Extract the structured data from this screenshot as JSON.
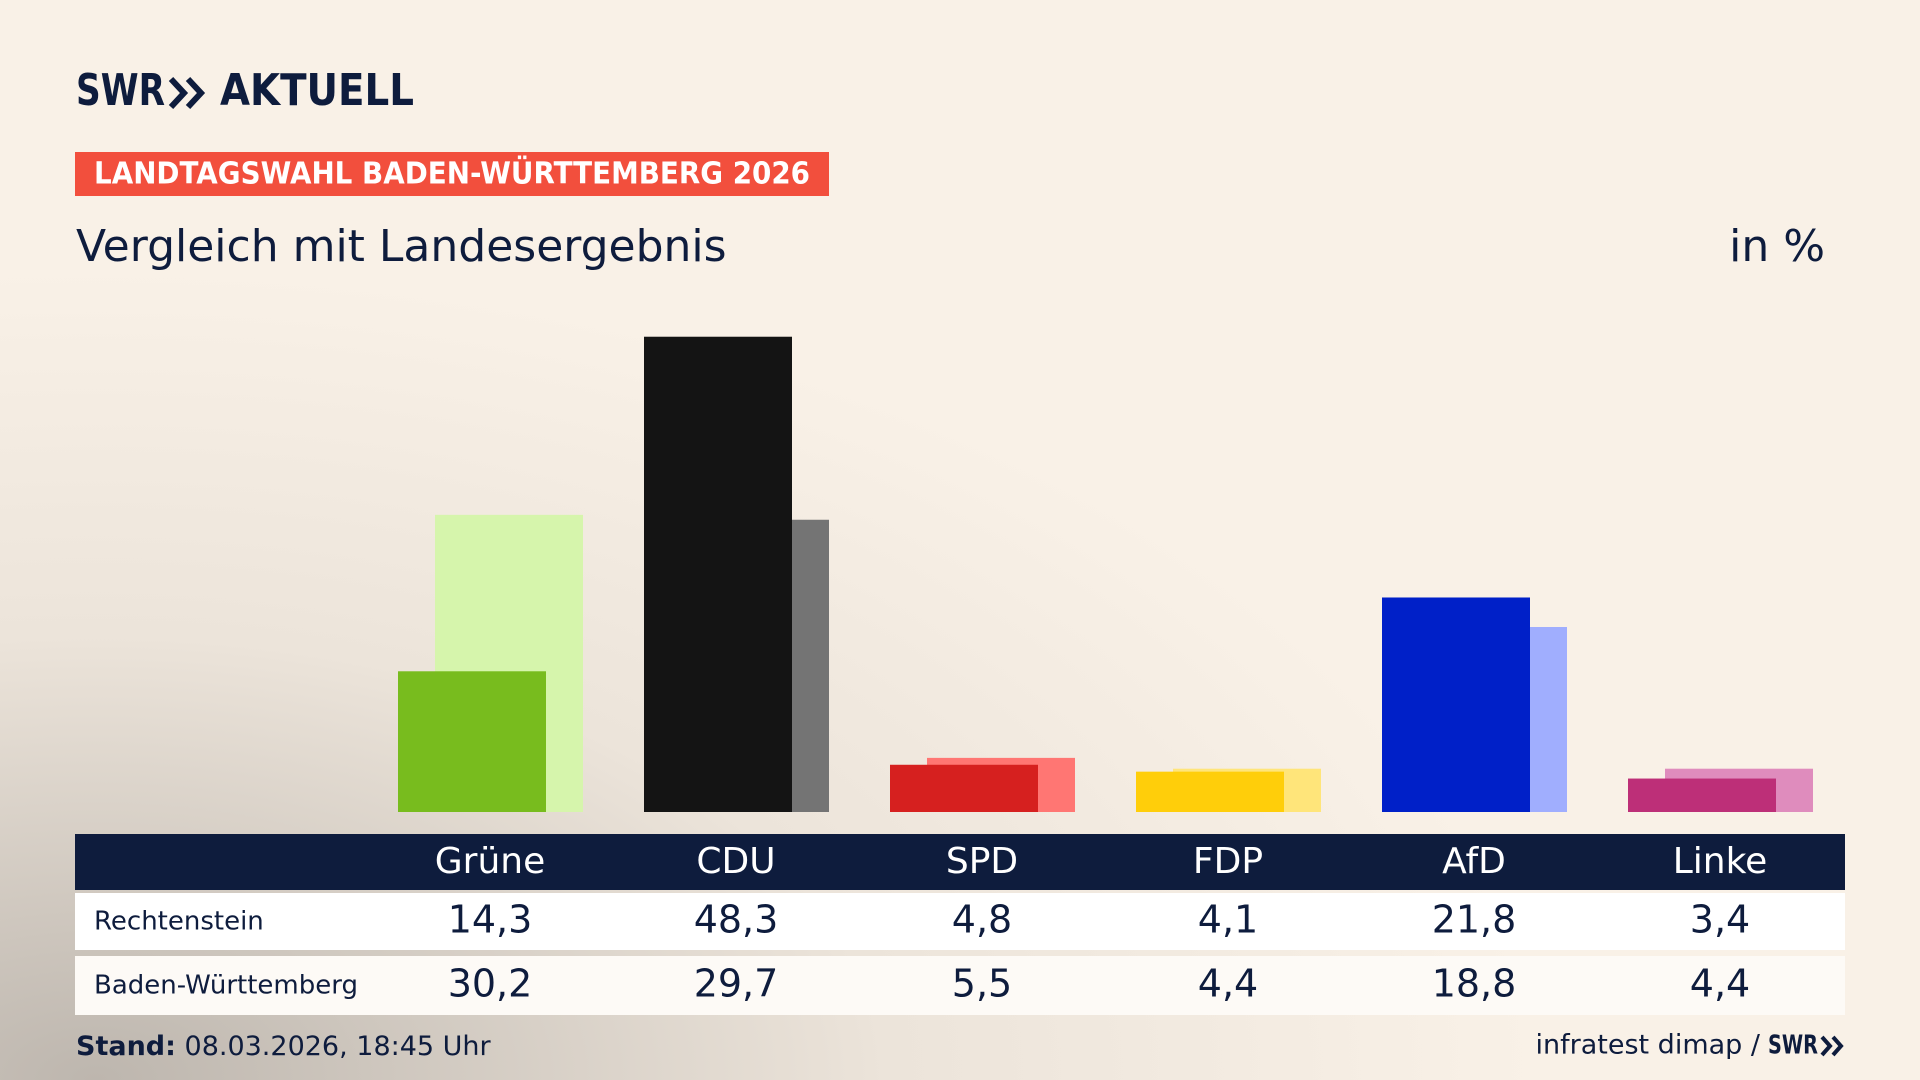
{
  "brand": {
    "name": "SWR",
    "section": "AKTUELL"
  },
  "banner": "LANDTAGSWAHL BADEN-WÜRTTEMBERG 2026",
  "chart_data": {
    "type": "bar",
    "title": "Vergleich mit Landesergebnis",
    "unit": "in %",
    "categories": [
      "Grüne",
      "CDU",
      "SPD",
      "FDP",
      "AfD",
      "Linke"
    ],
    "series": [
      {
        "name": "Rechtenstein",
        "values": [
          14.3,
          48.3,
          4.8,
          4.1,
          21.8,
          3.4
        ],
        "value_labels": [
          "14,3",
          "48,3",
          "4,8",
          "4,1",
          "21,8",
          "3,4"
        ],
        "colors": [
          "#78bc1e",
          "#141414",
          "#d6201f",
          "#ffce0a",
          "#0020c8",
          "#bd2f78"
        ]
      },
      {
        "name": "Baden-Württemberg",
        "values": [
          30.2,
          29.7,
          5.5,
          4.4,
          18.8,
          4.4
        ],
        "value_labels": [
          "30,2",
          "29,7",
          "5,5",
          "4,4",
          "18,8",
          "4,4"
        ],
        "colors": [
          "#d6f5ac",
          "#747474",
          "#ff7673",
          "#ffe57a",
          "#a0aefe",
          "#df8cbd"
        ]
      }
    ],
    "ylim": [
      0,
      50
    ]
  },
  "footer": {
    "stand_label": "Stand:",
    "stand_value": "08.03.2026, 18:45 Uhr",
    "source": "infratest dimap /",
    "logo": "SWR"
  }
}
